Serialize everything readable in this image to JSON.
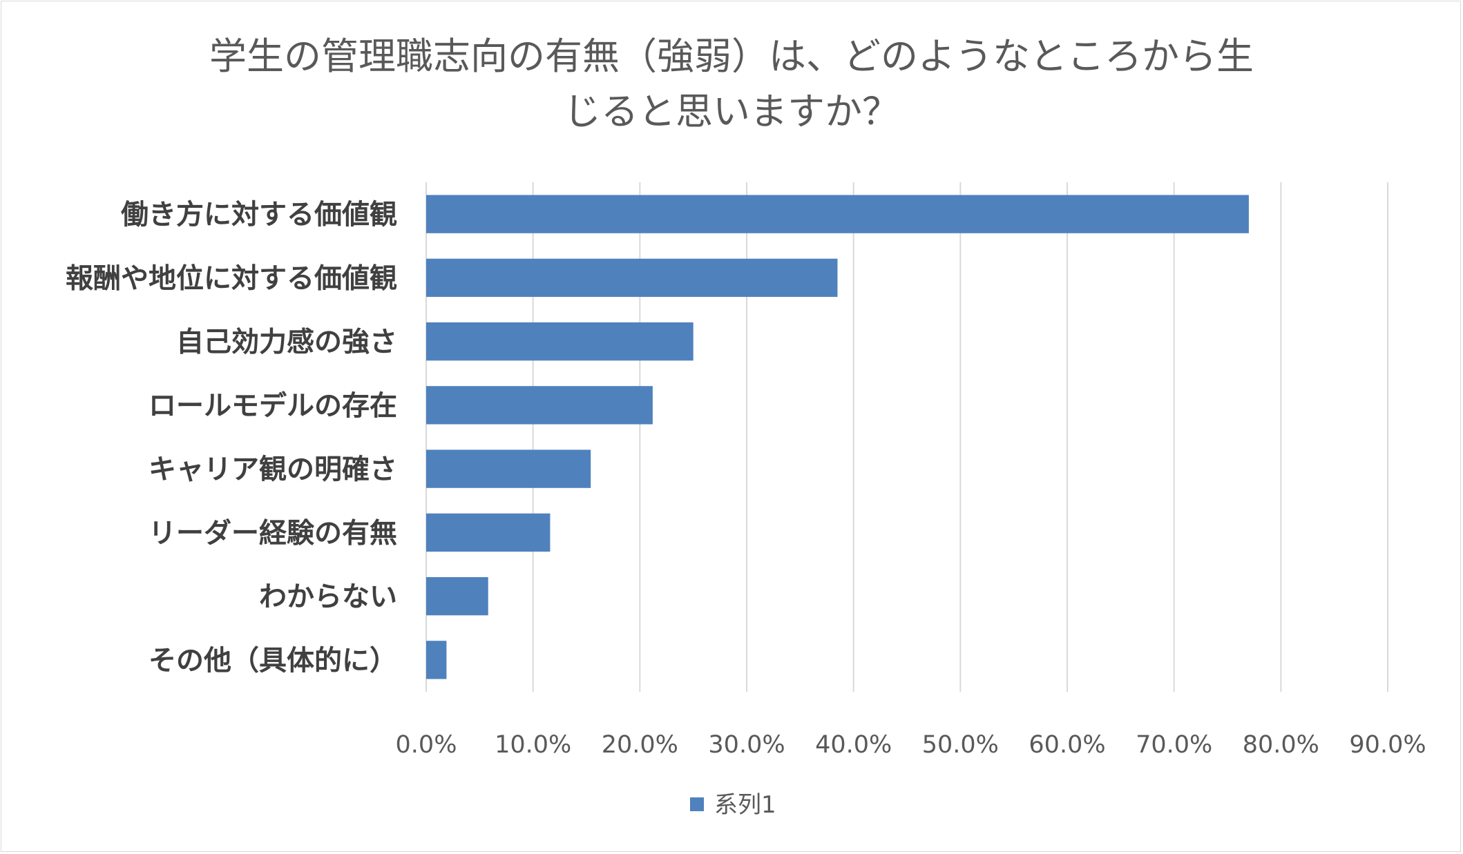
{
  "chart_data": {
    "type": "bar",
    "orientation": "horizontal",
    "title_lines": [
      "学生の管理職志向の有無（強弱）は、どのようなところから生",
      "じると思いますか？"
    ],
    "categories": [
      "働き方に対する価値観",
      "報酬や地位に対する価値観",
      "自己効力感の強さ",
      "ロールモデルの存在",
      "キャリア観の明確さ",
      "リーダー経験の有無",
      "わからない",
      "その他（具体的に）"
    ],
    "series": [
      {
        "name": "系列1",
        "color": "#4f81bd",
        "values": [
          77.0,
          38.5,
          25.0,
          21.2,
          15.4,
          11.6,
          5.8,
          1.9
        ]
      }
    ],
    "xlim": [
      0,
      90
    ],
    "x_ticks": [
      "0.0%",
      "10.0%",
      "20.0%",
      "30.0%",
      "40.0%",
      "50.0%",
      "60.0%",
      "70.0%",
      "80.0%",
      "90.0%"
    ],
    "grid": true,
    "legend_position": "bottom"
  }
}
